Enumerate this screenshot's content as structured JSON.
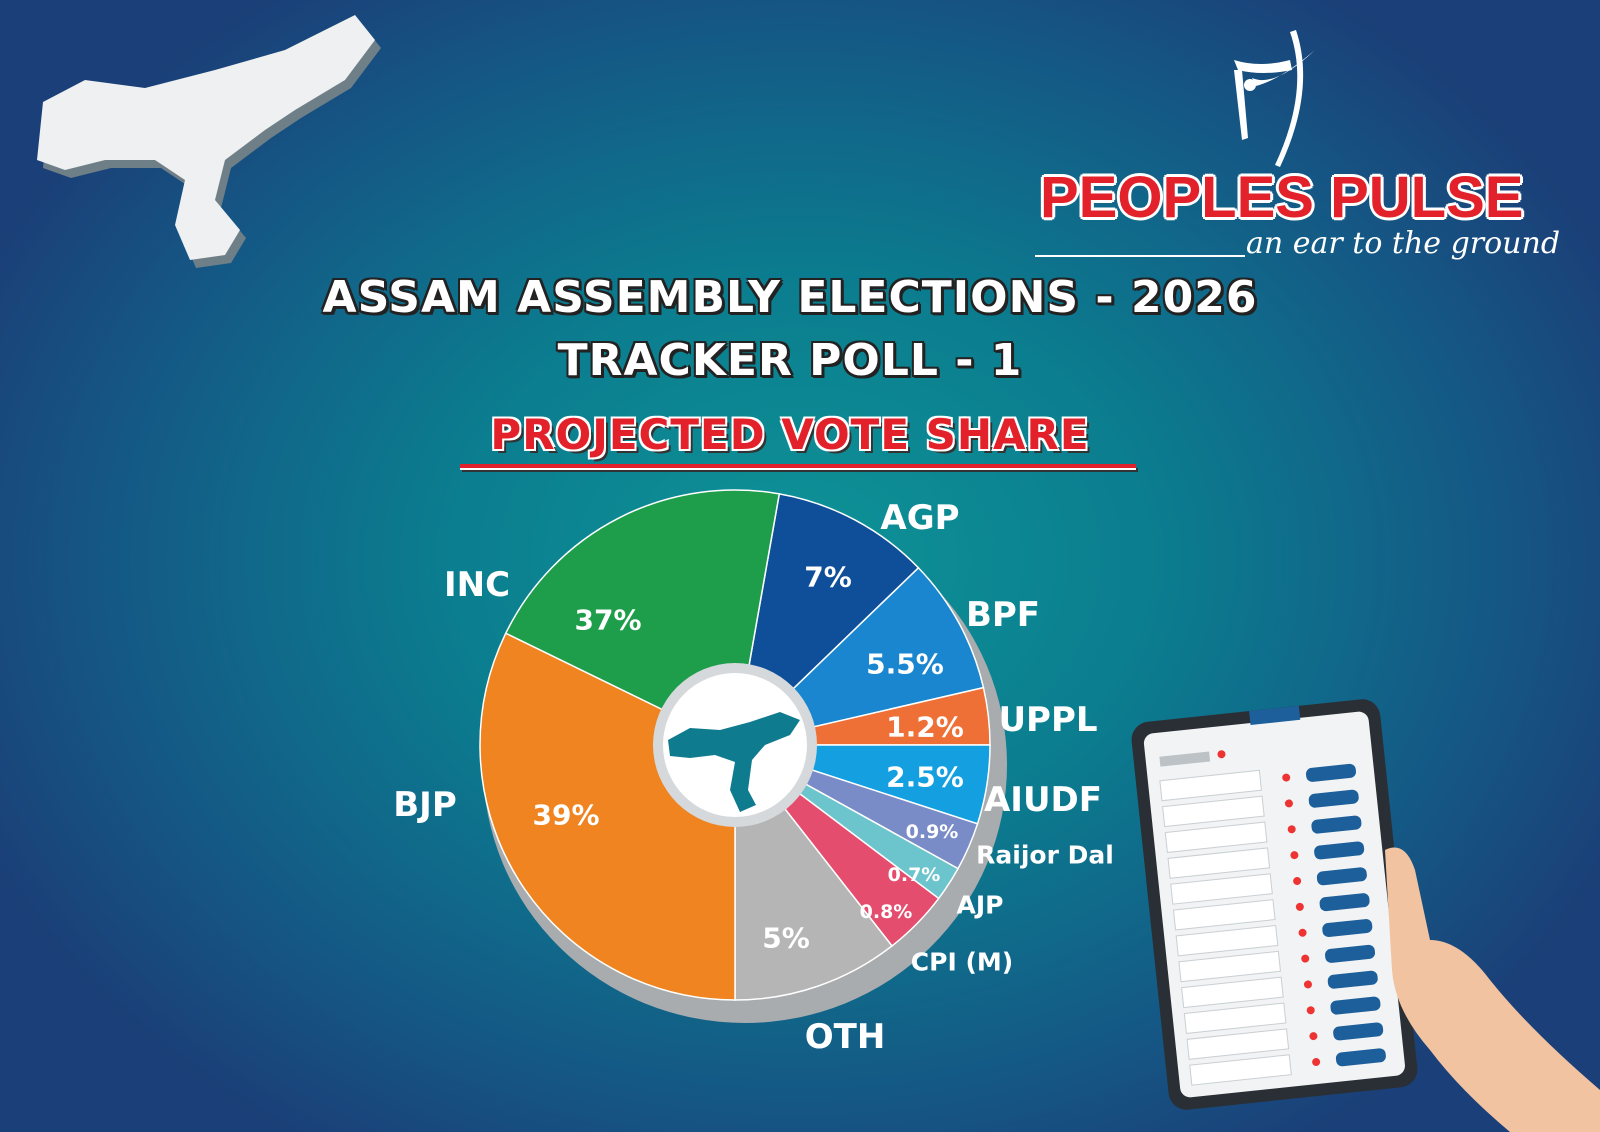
{
  "brand": {
    "name": "PEOPLES PULSE",
    "tagline": "an ear to the ground"
  },
  "header": {
    "line1": "ASSAM ASSEMBLY  ELECTIONS - 2026",
    "line2": "TRACKER POLL - 1",
    "line3": "PROJECTED VOTE SHARE"
  },
  "icons": [
    "assam-map-icon",
    "peoples-pulse-logo-icon",
    "evm-machine-icon",
    "hand-icon"
  ],
  "chart_data": {
    "type": "pie",
    "title": "PROJECTED VOTE SHARE",
    "style": "donut with Assam map in centre, 3D shadow",
    "slices": [
      {
        "label": "AGP",
        "value": 7,
        "value_label": "7%",
        "color": "#0f4f9a"
      },
      {
        "label": "BPF",
        "value": 5.5,
        "value_label": "5.5%",
        "color": "#1a86cf"
      },
      {
        "label": "UPPL",
        "value": 1.2,
        "value_label": "1.2%",
        "color": "#ef7036"
      },
      {
        "label": "AIUDF",
        "value": 2.5,
        "value_label": "2.5%",
        "color": "#139fe0"
      },
      {
        "label": "Raijor Dal",
        "value": 0.9,
        "value_label": "0.9%",
        "color": "#7a8cc8"
      },
      {
        "label": "AJP",
        "value": 0.7,
        "value_label": "0.7%",
        "color": "#6cc4cc"
      },
      {
        "label": "CPI (M)",
        "value": 0.8,
        "value_label": "0.8%",
        "color": "#e44d6d"
      },
      {
        "label": "OTH",
        "value": 5,
        "value_label": "5%",
        "color": "#b5b5b5"
      },
      {
        "label": "BJP",
        "value": 39,
        "value_label": "39%",
        "color": "#ef8420"
      },
      {
        "label": "INC",
        "value": 37,
        "value_label": "37%",
        "color": "#1e9e4a"
      }
    ]
  }
}
